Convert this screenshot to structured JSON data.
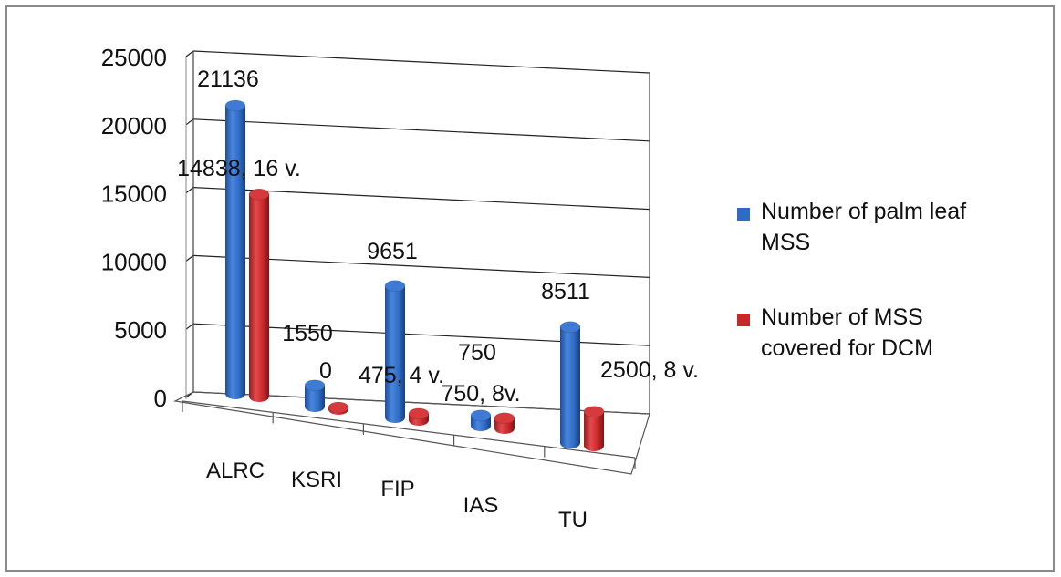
{
  "chart_data": {
    "type": "bar",
    "three_d": true,
    "categories": [
      "ALRC",
      "KSRI",
      "FIP",
      "IAS",
      "TU"
    ],
    "series": [
      {
        "name": "Number of palm leaf MSS",
        "color": "#2e6bc4",
        "values": [
          21136,
          1550,
          9651,
          750,
          8511
        ],
        "labels": [
          "21136",
          "1550",
          "9651",
          "750",
          "8511"
        ]
      },
      {
        "name": "Number of MSS covered for DCM",
        "color": "#c8282a",
        "values": [
          14838,
          0,
          475,
          750,
          2500
        ],
        "labels": [
          "14838, 16 v.",
          "0",
          "475, 4 v.",
          "750, 8v.",
          "2500, 8 v."
        ]
      }
    ],
    "yticks": [
      "0",
      "5000",
      "10000",
      "15000",
      "20000",
      "25000"
    ],
    "ylim": [
      0,
      25000
    ],
    "grid": true,
    "legend_position": "right"
  }
}
